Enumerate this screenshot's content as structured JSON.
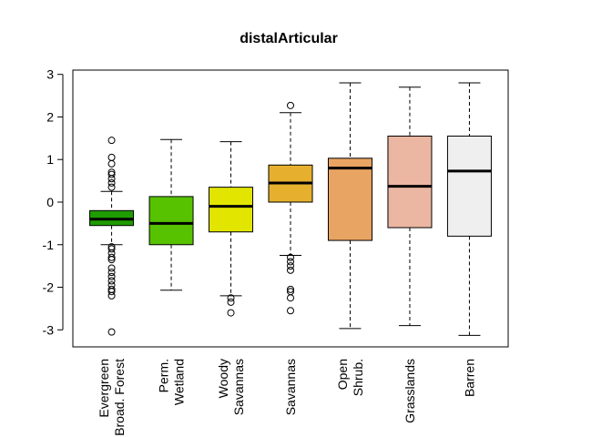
{
  "chart_data": {
    "type": "boxplot",
    "title": "distalArticular",
    "xlabel": "",
    "ylabel": "",
    "ylim": [
      -3.4,
      3.1
    ],
    "yticks": [
      -3,
      -2,
      -1,
      0,
      1,
      2,
      3
    ],
    "categories": [
      [
        "Evergreen",
        "Broad. Forest"
      ],
      [
        "Perm.",
        "Wetland"
      ],
      [
        "Woody",
        "Savannas"
      ],
      [
        "Savannas"
      ],
      [
        "Open",
        "Shrub."
      ],
      [
        "Grasslands"
      ],
      [
        "Barren"
      ]
    ],
    "boxes": [
      {
        "color": "#1f9c00",
        "whisker_low": -1.0,
        "q1": -0.55,
        "median": -0.4,
        "q3": -0.2,
        "whisker_high": 0.25,
        "outliers": [
          1.45,
          1.05,
          0.9,
          0.7,
          0.65,
          0.55,
          0.45,
          0.35,
          -1.05,
          -1.1,
          -1.2,
          -1.3,
          -1.35,
          -1.55,
          -1.65,
          -1.75,
          -1.85,
          -1.95,
          -2.05,
          -2.1,
          -2.2,
          -3.05
        ]
      },
      {
        "color": "#56c200",
        "whisker_low": -2.07,
        "q1": -1.0,
        "median": -0.5,
        "q3": 0.13,
        "whisker_high": 1.47,
        "outliers": []
      },
      {
        "color": "#e2e500",
        "whisker_low": -2.2,
        "q1": -0.7,
        "median": -0.1,
        "q3": 0.35,
        "whisker_high": 1.42,
        "outliers": [
          -2.25,
          -2.35,
          -2.6
        ]
      },
      {
        "color": "#e6b02e",
        "whisker_low": -1.25,
        "q1": 0.0,
        "median": 0.45,
        "q3": 0.87,
        "whisker_high": 2.1,
        "outliers": [
          2.27,
          -1.3,
          -1.4,
          -1.5,
          -1.6,
          -2.05,
          -2.1,
          -2.25,
          -2.55
        ]
      },
      {
        "color": "#e8a462",
        "whisker_low": -2.97,
        "q1": -0.9,
        "median": 0.8,
        "q3": 1.03,
        "whisker_high": 2.8,
        "outliers": []
      },
      {
        "color": "#ebb6a2",
        "whisker_low": -2.9,
        "q1": -0.6,
        "median": 0.37,
        "q3": 1.55,
        "whisker_high": 2.7,
        "outliers": []
      },
      {
        "color": "#efefef",
        "whisker_low": -3.13,
        "q1": -0.8,
        "median": 0.73,
        "q3": 1.55,
        "whisker_high": 2.8,
        "outliers": []
      }
    ]
  }
}
